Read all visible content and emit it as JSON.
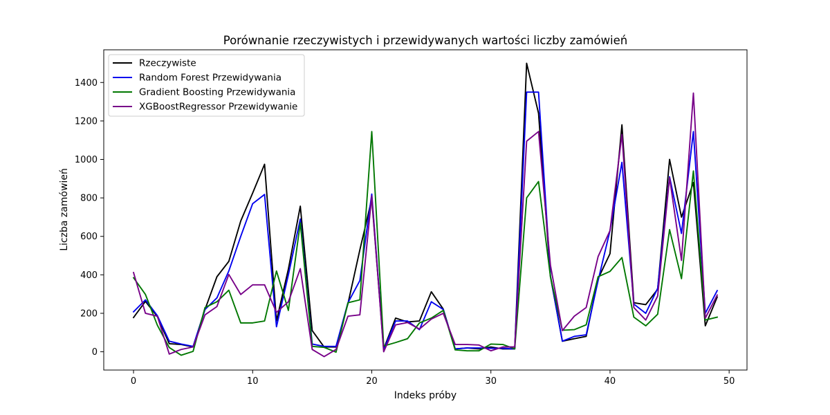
{
  "chart_data": {
    "type": "line",
    "title": "Porównanie rzeczywistych i przewidywanych wartości liczby zamówień",
    "xlabel": "Indeks próby",
    "ylabel": "Liczba zamówień",
    "xlim": [
      -2.5,
      51.5
    ],
    "ylim": [
      -95,
      1570
    ],
    "xticks": [
      0,
      10,
      20,
      30,
      40,
      50
    ],
    "yticks": [
      0,
      200,
      400,
      600,
      800,
      1000,
      1200,
      1400
    ],
    "grid": false,
    "legend_position": "top-left",
    "x": [
      0,
      1,
      2,
      3,
      4,
      5,
      6,
      7,
      8,
      9,
      10,
      11,
      12,
      13,
      14,
      15,
      16,
      17,
      18,
      19,
      20,
      21,
      22,
      23,
      24,
      25,
      26,
      27,
      28,
      29,
      30,
      31,
      32,
      33,
      34,
      35,
      36,
      37,
      38,
      39,
      40,
      41,
      42,
      43,
      44,
      45,
      46,
      47,
      48,
      49
    ],
    "series": [
      {
        "name": "Rzeczywiste",
        "color": "#000000",
        "values": [
          178,
          262,
          183,
          42,
          38,
          25,
          220,
          390,
          470,
          680,
          825,
          975,
          160,
          430,
          757,
          110,
          25,
          25,
          250,
          530,
          795,
          15,
          175,
          155,
          160,
          312,
          222,
          15,
          20,
          15,
          25,
          15,
          15,
          1500,
          1240,
          390,
          55,
          68,
          80,
          380,
          510,
          1180,
          255,
          245,
          325,
          1000,
          700,
          880,
          135,
          285
        ]
      },
      {
        "name": "Random Forest Przewidywania",
        "color": "#0000ee",
        "values": [
          208,
          270,
          188,
          55,
          40,
          28,
          220,
          280,
          420,
          600,
          770,
          818,
          130,
          400,
          690,
          40,
          28,
          28,
          255,
          370,
          820,
          10,
          160,
          160,
          115,
          260,
          220,
          15,
          20,
          20,
          18,
          18,
          15,
          1350,
          1350,
          395,
          55,
          80,
          88,
          370,
          630,
          985,
          248,
          200,
          330,
          910,
          615,
          1145,
          200,
          318
        ]
      },
      {
        "name": "Gradient Boosting Przewidywania",
        "color": "#007700",
        "values": [
          385,
          298,
          138,
          22,
          -18,
          2,
          230,
          260,
          320,
          150,
          150,
          160,
          420,
          215,
          670,
          28,
          23,
          -2,
          255,
          270,
          1145,
          30,
          48,
          68,
          150,
          175,
          215,
          10,
          5,
          5,
          40,
          38,
          15,
          800,
          885,
          390,
          112,
          115,
          140,
          390,
          418,
          490,
          180,
          135,
          195,
          635,
          380,
          940,
          165,
          180
        ]
      },
      {
        "name": "XGBoostRegressor Przewidywanie",
        "color": "#770088",
        "values": [
          412,
          200,
          185,
          -12,
          12,
          25,
          192,
          235,
          402,
          298,
          348,
          348,
          205,
          260,
          432,
          12,
          -25,
          12,
          185,
          192,
          810,
          0,
          140,
          152,
          118,
          170,
          200,
          38,
          38,
          35,
          5,
          25,
          25,
          1095,
          1145,
          450,
          110,
          185,
          230,
          495,
          630,
          1130,
          230,
          165,
          290,
          905,
          475,
          1345,
          175,
          295
        ]
      }
    ]
  }
}
